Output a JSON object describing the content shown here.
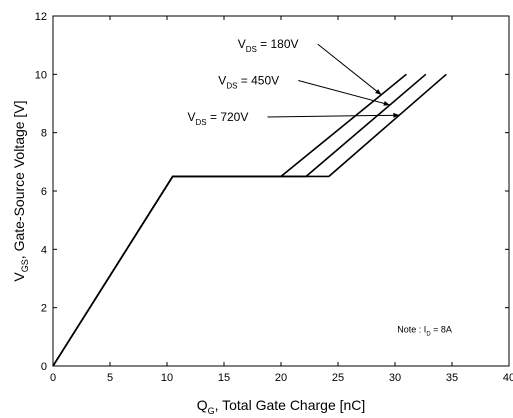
{
  "chart_data": {
    "type": "line",
    "xlim": [
      0,
      40
    ],
    "ylim": [
      0,
      12
    ],
    "x_ticks": [
      0,
      5,
      10,
      15,
      20,
      25,
      30,
      35,
      40
    ],
    "y_ticks": [
      0,
      2,
      4,
      6,
      8,
      10,
      12
    ],
    "grid": false,
    "legend": "none",
    "xlabel": {
      "main": "Q",
      "sub": "G",
      "rest": ", Total Gate Charge [nC]"
    },
    "ylabel": {
      "main": "V",
      "sub": "GS",
      "rest": ", Gate-Source Voltage [V]"
    },
    "series": [
      {
        "label": {
          "main": "V",
          "sub": "DS",
          "rest": " = 180V"
        },
        "x": [
          0,
          10.5,
          20.0,
          31.0
        ],
        "y": [
          0,
          6.5,
          6.5,
          10.0
        ]
      },
      {
        "label": {
          "main": "V",
          "sub": "DS",
          "rest": " = 450V"
        },
        "x": [
          0,
          10.5,
          22.2,
          32.7
        ],
        "y": [
          0,
          6.5,
          6.5,
          10.0
        ]
      },
      {
        "label": {
          "main": "V",
          "sub": "DS",
          "rest": " = 720V"
        },
        "x": [
          0,
          10.5,
          24.2,
          34.5
        ],
        "y": [
          0,
          6.5,
          6.5,
          10.0
        ]
      }
    ],
    "note": {
      "main": "Note : I",
      "sub": "D",
      "rest": " = 8A"
    },
    "colors": {
      "line": "#000000",
      "background": "#ffffff"
    }
  }
}
